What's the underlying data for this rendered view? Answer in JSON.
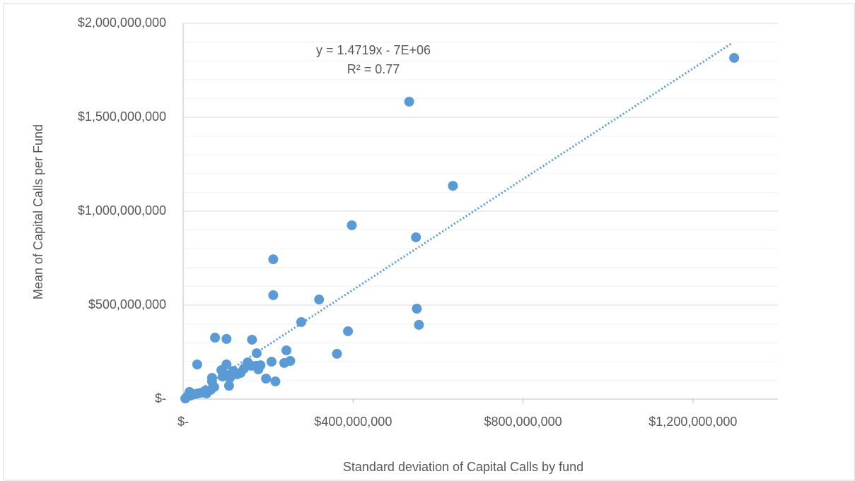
{
  "chart_data": {
    "type": "scatter",
    "x_label": "Standard deviation of Capital Calls by fund",
    "y_label": "Mean of Capital Calls per Fund",
    "color": "#5b9bd5",
    "x": [
      1297000000,
      532000000,
      635000000,
      397000000,
      548000000,
      212000000,
      212000000,
      320000000,
      550000000,
      555000000,
      278000000,
      388000000,
      75000000,
      102000000,
      162000000,
      33000000,
      362000000,
      243000000,
      173000000,
      252000000,
      238000000,
      208000000,
      152000000,
      102000000,
      90000000,
      118000000,
      135000000,
      143000000,
      172000000,
      182000000,
      177000000,
      98000000,
      110000000,
      108000000,
      195000000,
      217000000,
      68000000,
      68000000,
      73000000,
      65000000,
      52000000,
      43000000,
      27000000,
      15000000,
      10000000,
      5000000,
      18000000,
      35000000,
      55000000,
      93000000,
      127000000,
      160000000
    ],
    "values": [
      1816000000,
      1583000000,
      1135000000,
      925000000,
      861000000,
      744000000,
      553000000,
      530000000,
      481000000,
      395000000,
      410000000,
      361000000,
      327000000,
      320000000,
      316000000,
      184000000,
      241000000,
      259000000,
      244000000,
      203000000,
      192000000,
      199000000,
      195000000,
      184000000,
      154000000,
      150000000,
      139000000,
      162000000,
      177000000,
      180000000,
      158000000,
      132000000,
      113000000,
      71000000,
      109000000,
      94000000,
      113000000,
      94000000,
      64000000,
      49000000,
      45000000,
      34000000,
      26000000,
      38000000,
      15000000,
      3000000,
      19000000,
      30000000,
      30000000,
      120000000,
      132000000,
      177000000
    ],
    "xlim": [
      0,
      1400000000
    ],
    "ylim": [
      0,
      2000000000
    ],
    "xticks": [
      {
        "value": 0,
        "label": "$-"
      },
      {
        "value": 400000000,
        "label": "$400,000,000"
      },
      {
        "value": 800000000,
        "label": "$800,000,000"
      },
      {
        "value": 1200000000,
        "label": "$1,200,000,000"
      }
    ],
    "yticks": [
      {
        "value": 0,
        "label": "$-"
      },
      {
        "value": 500000000,
        "label": "$500,000,000"
      },
      {
        "value": 1000000000,
        "label": "$1,000,000,000"
      },
      {
        "value": 1500000000,
        "label": "$1,500,000,000"
      },
      {
        "value": 2000000000,
        "label": "$2,000,000,000"
      }
    ],
    "y_minor_ticks": [
      100000000,
      200000000,
      300000000,
      400000000,
      600000000,
      700000000,
      800000000,
      900000000,
      1100000000,
      1200000000,
      1300000000,
      1400000000,
      1600000000,
      1700000000,
      1800000000,
      1900000000
    ],
    "grid": true,
    "trendline": {
      "slope": 1.4719,
      "intercept": -7000000,
      "xrange": [
        10000000,
        1293000000
      ],
      "equation": "y = 1.4719x - 7E+06",
      "r2": "R² = 0.77"
    }
  }
}
